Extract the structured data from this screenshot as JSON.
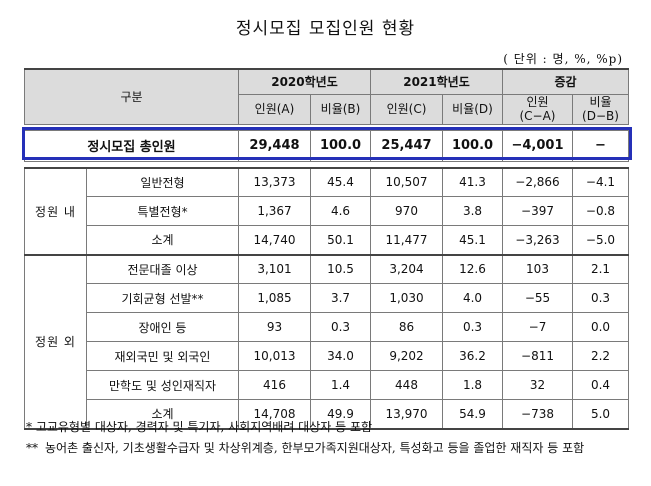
{
  "title": "정시모집 모집인원 현황",
  "unit": "( 단위 : 명, %, %p)",
  "header": {
    "category": "구분",
    "y2020": "2020학년도",
    "y2021": "2021학년도",
    "change": "증감",
    "col_a": "인원(A)",
    "col_b": "비율(B)",
    "col_c": "인원(C)",
    "col_d": "비율(D)",
    "col_ca_1": "인원",
    "col_ca_2": "(C−A)",
    "col_db_1": "비율",
    "col_db_2": "(D−B)"
  },
  "total": {
    "label": "정시모집 총인원",
    "a": "29,448",
    "b": "100.0",
    "c": "25,447",
    "d": "100.0",
    "ca": "−4,001",
    "db": "−"
  },
  "inside": {
    "group": "정원 내",
    "rows": [
      {
        "label": "일반전형",
        "a": "13,373",
        "b": "45.4",
        "c": "10,507",
        "d": "41.3",
        "ca": "−2,866",
        "db": "−4.1"
      },
      {
        "label": "특별전형*",
        "a": "1,367",
        "b": "4.6",
        "c": "970",
        "d": "3.8",
        "ca": "−397",
        "db": "−0.8"
      }
    ],
    "subtotal": {
      "label": "소계",
      "a": "14,740",
      "b": "50.1",
      "c": "11,477",
      "d": "45.1",
      "ca": "−3,263",
      "db": "−5.0"
    }
  },
  "outside": {
    "group": "정원 외",
    "rows": [
      {
        "label": "전문대졸 이상",
        "a": "3,101",
        "b": "10.5",
        "c": "3,204",
        "d": "12.6",
        "ca": "103",
        "db": "2.1"
      },
      {
        "label": "기회균형 선발**",
        "a": "1,085",
        "b": "3.7",
        "c": "1,030",
        "d": "4.0",
        "ca": "−55",
        "db": "0.3"
      },
      {
        "label": "장애인 등",
        "a": "93",
        "b": "0.3",
        "c": "86",
        "d": "0.3",
        "ca": "−7",
        "db": "0.0"
      },
      {
        "label": "재외국민 및 외국인",
        "a": "10,013",
        "b": "34.0",
        "c": "9,202",
        "d": "36.2",
        "ca": "−811",
        "db": "2.2"
      },
      {
        "label": "만학도 및 성인재직자",
        "a": "416",
        "b": "1.4",
        "c": "448",
        "d": "1.8",
        "ca": "32",
        "db": "0.4"
      }
    ],
    "subtotal": {
      "label": "소계",
      "a": "14,708",
      "b": "49.9",
      "c": "13,970",
      "d": "54.9",
      "ca": "−738",
      "db": "5.0"
    }
  },
  "notes": {
    "note1": "* 고교유형별 대상자, 경력자 및 특기자, 사회지역배려 대상자 등 포함",
    "note2_mark": "**",
    "note2": "농어촌 출신자, 기초생활수급자 및 차상위계층, 한부모가족지원대상자, 특성화고 등을 졸업한 재직자 등 포함"
  }
}
